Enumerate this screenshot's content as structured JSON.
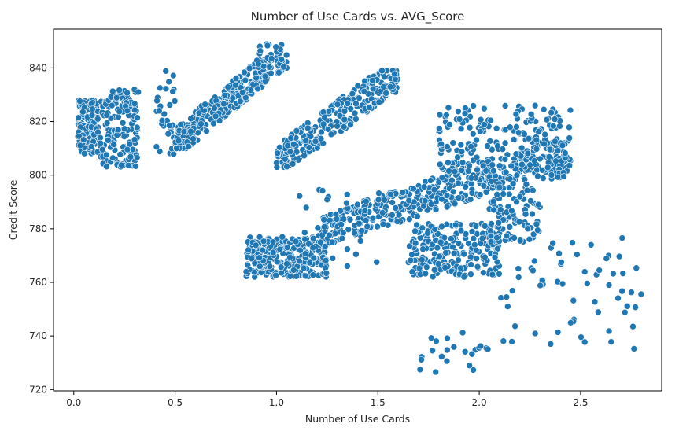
{
  "chart_data": {
    "type": "scatter",
    "title": "Number of Use Cards vs. AVG_Score",
    "xlabel": "Number of Use Cards",
    "ylabel": "Credit Score",
    "xlim": [
      -0.1,
      2.9
    ],
    "ylim": [
      719.5,
      854.5
    ],
    "xticks": [
      0.0,
      0.5,
      1.0,
      1.5,
      2.0,
      2.5
    ],
    "xtick_labels": [
      "0.0",
      "0.5",
      "1.0",
      "1.5",
      "2.0",
      "2.5"
    ],
    "yticks": [
      720,
      740,
      760,
      780,
      800,
      820,
      840
    ],
    "ytick_labels": [
      "720",
      "740",
      "760",
      "780",
      "800",
      "820",
      "840"
    ],
    "grid": false,
    "marker_color": "#1f77b4",
    "marker_edge_color": "#ffffff",
    "clusters": [
      {
        "kind": "band",
        "x_range": [
          0.02,
          0.12
        ],
        "y_range": [
          808,
          828
        ],
        "count": 170
      },
      {
        "kind": "band",
        "x_range": [
          0.13,
          0.32
        ],
        "y_range": [
          803,
          832
        ],
        "count": 140
      },
      {
        "kind": "band",
        "x_range": [
          0.4,
          0.5
        ],
        "y_range": [
          806,
          840
        ],
        "count": 30
      },
      {
        "kind": "band",
        "x_range": [
          0.5,
          0.98
        ],
        "y_range": [
          810,
          843
        ],
        "count": 330,
        "trend": [
          0.5,
          0.98,
          812,
          842
        ]
      },
      {
        "kind": "band",
        "x_range": [
          0.9,
          1.05
        ],
        "y_range": [
          838,
          850
        ],
        "count": 40
      },
      {
        "kind": "band",
        "x_range": [
          0.85,
          1.25
        ],
        "y_range": [
          762,
          777
        ],
        "count": 280
      },
      {
        "kind": "band",
        "x_range": [
          1.0,
          1.6
        ],
        "y_range": [
          803,
          839
        ],
        "count": 260,
        "trend": [
          1.0,
          1.6,
          805,
          838
        ]
      },
      {
        "kind": "band",
        "x_range": [
          1.2,
          2.45
        ],
        "y_range": [
          775,
          812
        ],
        "count": 420,
        "trend": [
          1.2,
          2.45,
          778,
          810
        ]
      },
      {
        "kind": "band",
        "x_range": [
          1.65,
          2.1
        ],
        "y_range": [
          762,
          782
        ],
        "count": 220
      },
      {
        "kind": "band",
        "x_range": [
          1.8,
          2.45
        ],
        "y_range": [
          798,
          826
        ],
        "count": 220
      },
      {
        "kind": "band",
        "x_range": [
          2.05,
          2.3
        ],
        "y_range": [
          775,
          800
        ],
        "count": 90
      },
      {
        "kind": "sparse",
        "x_range": [
          1.1,
          1.55
        ],
        "y_range": [
          765,
          795
        ],
        "count": 30
      },
      {
        "kind": "sparse",
        "x_range": [
          1.68,
          2.05
        ],
        "y_range": [
          726,
          742
        ],
        "count": 22
      },
      {
        "kind": "sparse",
        "x_range": [
          2.1,
          2.8
        ],
        "y_range": [
          735,
          777
        ],
        "count": 60
      }
    ]
  }
}
